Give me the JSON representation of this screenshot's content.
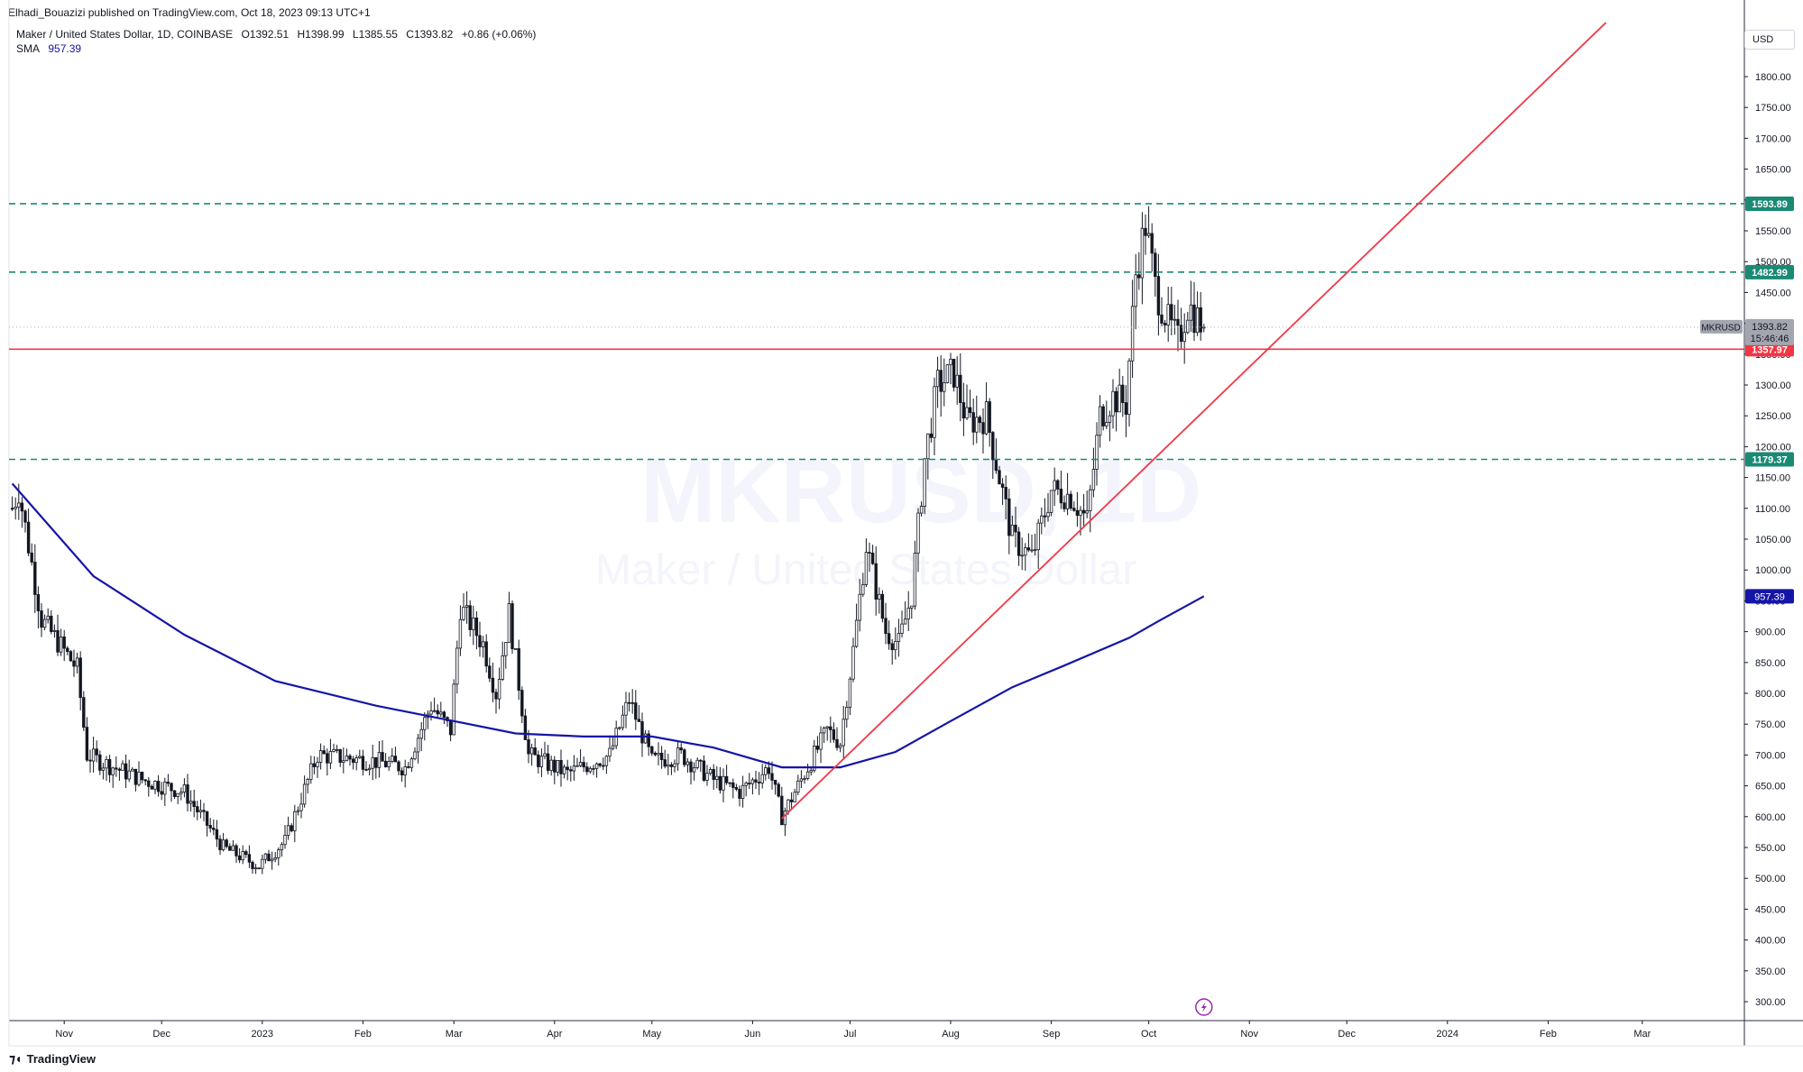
{
  "publisher": "Elhadi_Bouazizi published on TradingView.com, Oct 18, 2023 09:13 UTC+1",
  "legend": {
    "symbol_desc": "Maker / United States Dollar, 1D, COINBASE",
    "open": "O1392.51",
    "high": "H1398.99",
    "low": "L1385.55",
    "close": "C1393.82",
    "change": "+0.86 (+0.06%)",
    "sma_label": "SMA",
    "sma_value": "957.39"
  },
  "watermark": {
    "symbol": "MKRUSD, 1D",
    "description": "Maker / United States Dollar"
  },
  "currency": "USD",
  "footer_brand": "TradingView",
  "colors": {
    "up": "#131722",
    "down": "#131722",
    "sma": "#1515a8",
    "support": "#1a8a74",
    "red_line": "#f23645",
    "price_tag": "#a3a6af"
  },
  "chart_data": {
    "type": "candlestick",
    "symbol": "MKRUSD",
    "timeframe": "1D",
    "exchange": "COINBASE",
    "ylim": [
      260,
      1880
    ],
    "y_ticks": [
      300,
      350,
      400,
      450,
      500,
      550,
      600,
      650,
      700,
      750,
      800,
      850,
      900,
      950,
      1000,
      1050,
      1100,
      1150,
      1200,
      1250,
      1300,
      1350,
      1400,
      1450,
      1500,
      1550,
      1600,
      1650,
      1700,
      1750,
      1800
    ],
    "y_tick_labels": [
      "300.00",
      "350.00",
      "400.00",
      "450.00",
      "500.00",
      "550.00",
      "600.00",
      "650.00",
      "700.00",
      "750.00",
      "800.00",
      "850.00",
      "900.00",
      "950.00",
      "1000.00",
      "1050.00",
      "1100.00",
      "1150.00",
      "1200.00",
      "1250.00",
      "1300.00",
      "1350.00",
      "1400.00",
      "1450.00",
      "1500.00",
      "1550.00",
      "1600.00",
      "1650.00",
      "1700.00",
      "1750.00",
      "1800.00"
    ],
    "x_axis_labels": [
      {
        "label": "Nov",
        "date": "2022-11-01"
      },
      {
        "label": "Dec",
        "date": "2022-12-01"
      },
      {
        "label": "2023",
        "date": "2023-01-01"
      },
      {
        "label": "Feb",
        "date": "2023-02-01"
      },
      {
        "label": "Mar",
        "date": "2023-03-01"
      },
      {
        "label": "Apr",
        "date": "2023-04-01"
      },
      {
        "label": "May",
        "date": "2023-05-01"
      },
      {
        "label": "Jun",
        "date": "2023-06-01"
      },
      {
        "label": "Jul",
        "date": "2023-07-01"
      },
      {
        "label": "Aug",
        "date": "2023-08-01"
      },
      {
        "label": "Sep",
        "date": "2023-09-01"
      },
      {
        "label": "Oct",
        "date": "2023-10-01"
      },
      {
        "label": "Nov",
        "date": "2023-11-01"
      },
      {
        "label": "Dec",
        "date": "2023-12-01"
      },
      {
        "label": "2024",
        "date": "2024-01-01"
      },
      {
        "label": "Feb",
        "date": "2024-02-01"
      },
      {
        "label": "Mar",
        "date": "2024-03-01"
      }
    ],
    "price_path": [
      {
        "date": "2022-10-16",
        "close": 1100
      },
      {
        "date": "2022-10-18",
        "close": 1130
      },
      {
        "date": "2022-10-25",
        "close": 920
      },
      {
        "date": "2022-11-05",
        "close": 840
      },
      {
        "date": "2022-11-08",
        "close": 700
      },
      {
        "date": "2022-11-12",
        "close": 690
      },
      {
        "date": "2022-11-25",
        "close": 660
      },
      {
        "date": "2022-12-08",
        "close": 640
      },
      {
        "date": "2022-12-20",
        "close": 550
      },
      {
        "date": "2022-12-31",
        "close": 520
      },
      {
        "date": "2023-01-08",
        "close": 560
      },
      {
        "date": "2023-01-18",
        "close": 700
      },
      {
        "date": "2023-02-05",
        "close": 690
      },
      {
        "date": "2023-02-14",
        "close": 680
      },
      {
        "date": "2023-02-22",
        "close": 780
      },
      {
        "date": "2023-02-28",
        "close": 740
      },
      {
        "date": "2023-03-03",
        "close": 940
      },
      {
        "date": "2023-03-10",
        "close": 880
      },
      {
        "date": "2023-03-14",
        "close": 800
      },
      {
        "date": "2023-03-18",
        "close": 930
      },
      {
        "date": "2023-03-24",
        "close": 700
      },
      {
        "date": "2023-04-05",
        "close": 670
      },
      {
        "date": "2023-04-18",
        "close": 700
      },
      {
        "date": "2023-04-24",
        "close": 790
      },
      {
        "date": "2023-05-01",
        "close": 690
      },
      {
        "date": "2023-05-10",
        "close": 700
      },
      {
        "date": "2023-05-20",
        "close": 660
      },
      {
        "date": "2023-05-28",
        "close": 640
      },
      {
        "date": "2023-06-06",
        "close": 680
      },
      {
        "date": "2023-06-10",
        "close": 600
      },
      {
        "date": "2023-06-18",
        "close": 680
      },
      {
        "date": "2023-06-24",
        "close": 740
      },
      {
        "date": "2023-06-28",
        "close": 720
      },
      {
        "date": "2023-07-02",
        "close": 870
      },
      {
        "date": "2023-07-06",
        "close": 1040
      },
      {
        "date": "2023-07-12",
        "close": 900
      },
      {
        "date": "2023-07-16",
        "close": 880
      },
      {
        "date": "2023-07-20",
        "close": 960
      },
      {
        "date": "2023-07-24",
        "close": 1180
      },
      {
        "date": "2023-07-28",
        "close": 1300
      },
      {
        "date": "2023-08-02",
        "close": 1320
      },
      {
        "date": "2023-08-06",
        "close": 1240
      },
      {
        "date": "2023-08-12",
        "close": 1250
      },
      {
        "date": "2023-08-16",
        "close": 1150
      },
      {
        "date": "2023-08-20",
        "close": 1050
      },
      {
        "date": "2023-08-26",
        "close": 1020
      },
      {
        "date": "2023-09-01",
        "close": 1130
      },
      {
        "date": "2023-09-07",
        "close": 1120
      },
      {
        "date": "2023-09-12",
        "close": 1080
      },
      {
        "date": "2023-09-16",
        "close": 1250
      },
      {
        "date": "2023-09-20",
        "close": 1280
      },
      {
        "date": "2023-09-24",
        "close": 1270
      },
      {
        "date": "2023-09-27",
        "close": 1480
      },
      {
        "date": "2023-09-30",
        "close": 1560
      },
      {
        "date": "2023-10-03",
        "close": 1460
      },
      {
        "date": "2023-10-07",
        "close": 1400
      },
      {
        "date": "2023-10-10",
        "close": 1370
      },
      {
        "date": "2023-10-13",
        "close": 1430
      },
      {
        "date": "2023-10-18",
        "close": 1393.82
      }
    ],
    "sma": {
      "name": "SMA",
      "last_value": 957.39,
      "points": [
        {
          "date": "2022-10-16",
          "value": 1140
        },
        {
          "date": "2022-11-10",
          "value": 990
        },
        {
          "date": "2022-12-08",
          "value": 895
        },
        {
          "date": "2023-01-05",
          "value": 820
        },
        {
          "date": "2023-02-05",
          "value": 780
        },
        {
          "date": "2023-03-01",
          "value": 755
        },
        {
          "date": "2023-03-20",
          "value": 735
        },
        {
          "date": "2023-04-10",
          "value": 730
        },
        {
          "date": "2023-05-01",
          "value": 730
        },
        {
          "date": "2023-05-20",
          "value": 712
        },
        {
          "date": "2023-06-10",
          "value": 680
        },
        {
          "date": "2023-06-28",
          "value": 680
        },
        {
          "date": "2023-07-15",
          "value": 705
        },
        {
          "date": "2023-08-01",
          "value": 755
        },
        {
          "date": "2023-08-20",
          "value": 810
        },
        {
          "date": "2023-09-05",
          "value": 845
        },
        {
          "date": "2023-09-25",
          "value": 890
        },
        {
          "date": "2023-10-05",
          "value": 920
        },
        {
          "date": "2023-10-18",
          "value": 957.39
        }
      ]
    },
    "horizontal_lines": [
      {
        "value": 1593.89,
        "label": "1593.89",
        "style": "dashed",
        "color": "#1a8a74"
      },
      {
        "value": 1482.99,
        "label": "1482.99",
        "style": "dashed",
        "color": "#1a8a74"
      },
      {
        "value": 1357.97,
        "label": "1357.97",
        "style": "solid",
        "color": "#f23645"
      },
      {
        "value": 1179.37,
        "label": "1179.37",
        "style": "dashed",
        "color": "#1a8a74"
      }
    ],
    "trendline": {
      "color": "#f23645",
      "from": {
        "date": "2023-06-10",
        "value": 597
      },
      "to": {
        "date": "2023-09-12",
        "value": 1075
      }
    },
    "last_price": {
      "symbol": "MKRUSD",
      "value": "1393.82",
      "countdown": "15:46:46"
    }
  }
}
